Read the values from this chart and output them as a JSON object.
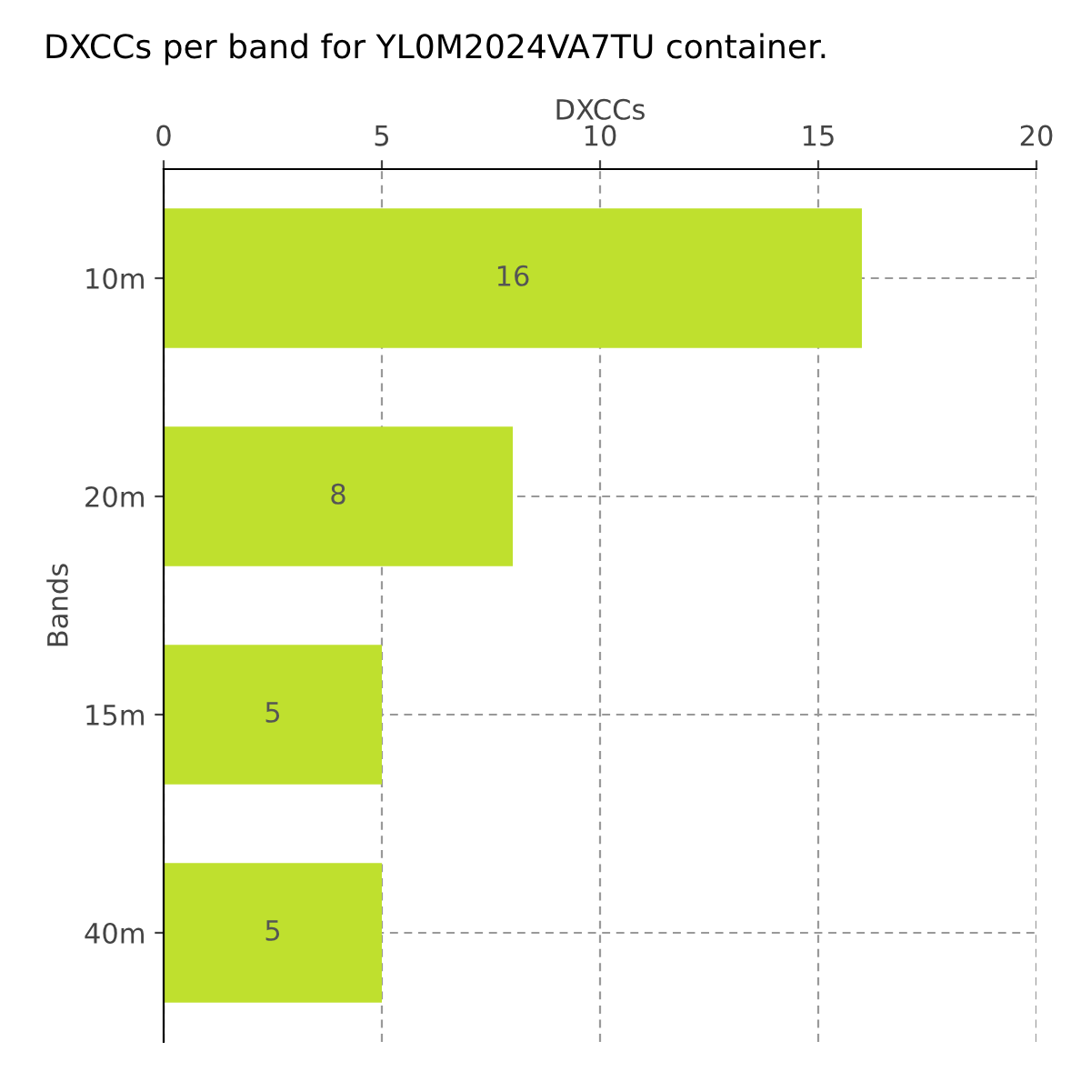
{
  "chart_data": {
    "type": "bar",
    "orientation": "horizontal",
    "title": "DXCCs per band for YL0M2024VA7TU container.",
    "xlabel": "DXCCs",
    "ylabel": "Bands",
    "categories": [
      "10m",
      "20m",
      "15m",
      "40m"
    ],
    "values": [
      16,
      8,
      5,
      5
    ],
    "color": "#bfe02e",
    "xlim": [
      0,
      20
    ],
    "xticks": [
      0,
      5,
      10,
      15,
      20
    ],
    "grid": true,
    "data_labels": true
  }
}
